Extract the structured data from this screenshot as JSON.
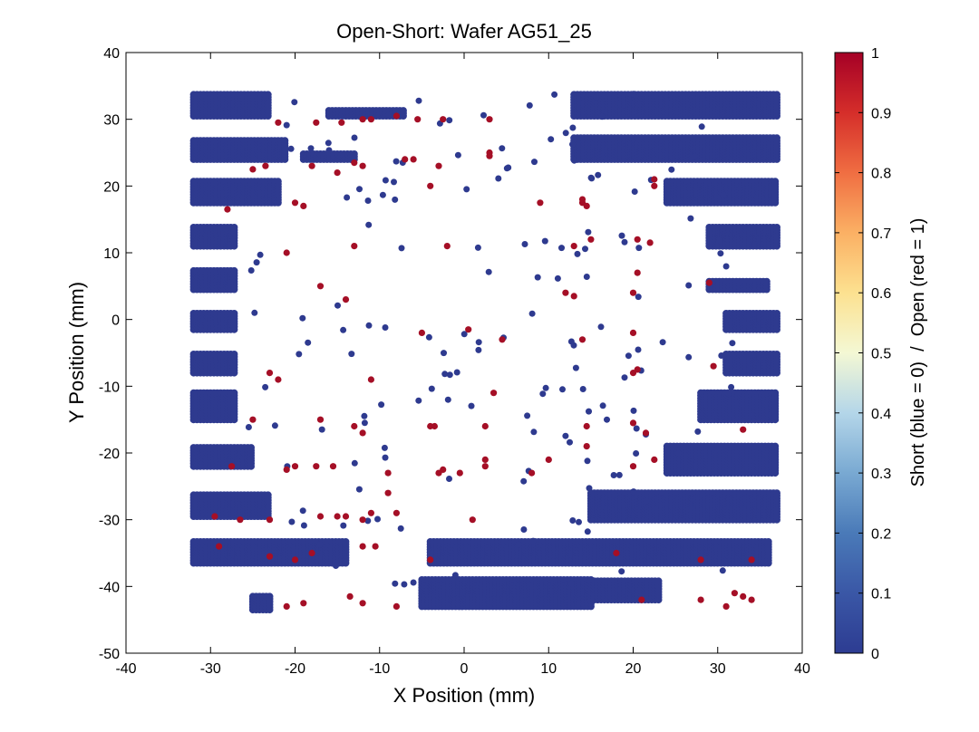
{
  "chart_data": {
    "type": "scatter",
    "title": "Open-Short: Wafer AG51_25",
    "xlabel": "X Position (mm)",
    "ylabel": "Y Position (mm)",
    "xlim": [
      -40,
      40
    ],
    "ylim": [
      -50,
      40
    ],
    "xticks": [
      "-40",
      "-30",
      "-20",
      "-10",
      "0",
      "10",
      "20",
      "30",
      "40"
    ],
    "yticks": [
      "40",
      "30",
      "20",
      "10",
      "0",
      "-10",
      "-20",
      "-30",
      "-40",
      "-50"
    ],
    "colorbar": {
      "label": "Short (blue = 0)  /  Open (red = 1)",
      "ticks": [
        "1",
        "0.9",
        "0.8",
        "0.7",
        "0.6",
        "0.5",
        "0.4",
        "0.3",
        "0.2",
        "0.1",
        "0"
      ],
      "range": [
        0,
        1
      ]
    },
    "colors": {
      "short": "#2e3a8f",
      "open": "#a50f26"
    },
    "dense_bands": [
      {
        "x": [
          -32,
          -23
        ],
        "y": [
          30.5,
          34
        ]
      },
      {
        "x": [
          -16,
          -7
        ],
        "y": [
          30.5,
          31.5
        ]
      },
      {
        "x": [
          13,
          37
        ],
        "y": [
          30.5,
          34
        ]
      },
      {
        "x": [
          -32,
          -21
        ],
        "y": [
          24,
          27
        ]
      },
      {
        "x": [
          -19,
          -13
        ],
        "y": [
          24,
          25
        ]
      },
      {
        "x": [
          13,
          37
        ],
        "y": [
          24,
          27.5
        ]
      },
      {
        "x": [
          -32,
          -22
        ],
        "y": [
          17.5,
          21
        ]
      },
      {
        "x": [
          24,
          37
        ],
        "y": [
          17.5,
          21
        ]
      },
      {
        "x": [
          -32,
          -27
        ],
        "y": [
          11,
          14
        ]
      },
      {
        "x": [
          29,
          37
        ],
        "y": [
          11,
          14
        ]
      },
      {
        "x": [
          -32,
          -27
        ],
        "y": [
          4.5,
          7.5
        ]
      },
      {
        "x": [
          29,
          36
        ],
        "y": [
          4.5,
          6
        ]
      },
      {
        "x": [
          -32,
          -27
        ],
        "y": [
          -1.5,
          1
        ]
      },
      {
        "x": [
          31,
          37
        ],
        "y": [
          -1.5,
          1
        ]
      },
      {
        "x": [
          -32,
          -27
        ],
        "y": [
          -8,
          -5
        ]
      },
      {
        "x": [
          31,
          37
        ],
        "y": [
          -8,
          -5
        ]
      },
      {
        "x": [
          -32,
          -27
        ],
        "y": [
          -15,
          -11
        ]
      },
      {
        "x": [
          28,
          37
        ],
        "y": [
          -15,
          -11
        ]
      },
      {
        "x": [
          -32,
          -25
        ],
        "y": [
          -22,
          -19
        ]
      },
      {
        "x": [
          24,
          37
        ],
        "y": [
          -23,
          -19
        ]
      },
      {
        "x": [
          -32,
          -23
        ],
        "y": [
          -29.5,
          -26
        ]
      },
      {
        "x": [
          15,
          37
        ],
        "y": [
          -30,
          -26
        ]
      },
      {
        "x": [
          -32,
          -14
        ],
        "y": [
          -36.5,
          -33
        ]
      },
      {
        "x": [
          -4,
          36
        ],
        "y": [
          -36.5,
          -33
        ]
      },
      {
        "x": [
          -25,
          -23
        ],
        "y": [
          -43.5,
          -41.5
        ]
      },
      {
        "x": [
          -5,
          15
        ],
        "y": [
          -43,
          -39
        ]
      },
      {
        "x": [
          15,
          23
        ],
        "y": [
          -42,
          -39
        ]
      }
    ],
    "open_points": [
      [
        -22,
        29.5
      ],
      [
        -17.5,
        29.5
      ],
      [
        -14.5,
        29.5
      ],
      [
        -12,
        30
      ],
      [
        -11,
        30
      ],
      [
        -8,
        30.5
      ],
      [
        -5.5,
        30
      ],
      [
        -2.5,
        30
      ],
      [
        3,
        30
      ],
      [
        -25,
        22.5
      ],
      [
        -23.5,
        23
      ],
      [
        -18,
        23
      ],
      [
        -15,
        22
      ],
      [
        -13,
        23.5
      ],
      [
        -12,
        23
      ],
      [
        -7,
        24
      ],
      [
        -6,
        24
      ],
      [
        -3,
        23
      ],
      [
        3,
        25
      ],
      [
        3,
        24.5
      ],
      [
        -28,
        16.5
      ],
      [
        -20,
        17.5
      ],
      [
        -19,
        17
      ],
      [
        -4,
        20
      ],
      [
        9,
        17.5
      ],
      [
        14,
        17.5
      ],
      [
        14,
        18
      ],
      [
        14.5,
        17
      ],
      [
        22.5,
        21
      ],
      [
        22.5,
        20
      ],
      [
        -21,
        10
      ],
      [
        -13,
        11
      ],
      [
        -2,
        11
      ],
      [
        13,
        11
      ],
      [
        15,
        12
      ],
      [
        20.5,
        12
      ],
      [
        22,
        11.5
      ],
      [
        -17,
        5
      ],
      [
        -14,
        3
      ],
      [
        12,
        4
      ],
      [
        13,
        3.5
      ],
      [
        20.5,
        7
      ],
      [
        20,
        4
      ],
      [
        29,
        5.5
      ],
      [
        -5,
        -2
      ],
      [
        0.5,
        -1.5
      ],
      [
        4.5,
        -3
      ],
      [
        14,
        -3
      ],
      [
        20,
        -2
      ],
      [
        -23,
        -8
      ],
      [
        -22,
        -9
      ],
      [
        -11,
        -9
      ],
      [
        3.5,
        -11
      ],
      [
        20,
        -8
      ],
      [
        20.5,
        -7.5
      ],
      [
        29.5,
        -7
      ],
      [
        -25,
        -15
      ],
      [
        -17,
        -15
      ],
      [
        -13,
        -16
      ],
      [
        -12,
        -17
      ],
      [
        -4,
        -16
      ],
      [
        -3.5,
        -16
      ],
      [
        2.5,
        -16
      ],
      [
        14.5,
        -16
      ],
      [
        14.5,
        -19
      ],
      [
        20,
        -15.5
      ],
      [
        21.5,
        -17
      ],
      [
        33,
        -16.5
      ],
      [
        -27.5,
        -22
      ],
      [
        -21,
        -22.5
      ],
      [
        -20,
        -22
      ],
      [
        -17.5,
        -22
      ],
      [
        -15.5,
        -22
      ],
      [
        -9,
        -23
      ],
      [
        -3,
        -23
      ],
      [
        -2.5,
        -22.5
      ],
      [
        -0.5,
        -23
      ],
      [
        2.5,
        -22
      ],
      [
        2.5,
        -21
      ],
      [
        8,
        -23
      ],
      [
        10,
        -21
      ],
      [
        20,
        -22
      ],
      [
        22.5,
        -21
      ],
      [
        -29.5,
        -29.5
      ],
      [
        -26.5,
        -30
      ],
      [
        -23,
        -30
      ],
      [
        -17,
        -29.5
      ],
      [
        -15,
        -29.5
      ],
      [
        -14,
        -29.5
      ],
      [
        -12,
        -30
      ],
      [
        -11,
        -29
      ],
      [
        -9,
        -26
      ],
      [
        -8,
        -29
      ],
      [
        1,
        -30
      ],
      [
        -29,
        -34
      ],
      [
        -23,
        -35.5
      ],
      [
        -20,
        -36
      ],
      [
        -18,
        -35
      ],
      [
        -12,
        -34
      ],
      [
        -10.5,
        -34
      ],
      [
        -4,
        -36
      ],
      [
        18,
        -35
      ],
      [
        28,
        -36
      ],
      [
        34,
        -36
      ],
      [
        -21,
        -43
      ],
      [
        -19,
        -42.5
      ],
      [
        -13.5,
        -41.5
      ],
      [
        -12,
        -42.5
      ],
      [
        -8,
        -43
      ],
      [
        21,
        -42
      ],
      [
        28,
        -42
      ],
      [
        31,
        -43
      ],
      [
        32,
        -41
      ],
      [
        33,
        -41.5
      ],
      [
        34,
        -42
      ]
    ]
  }
}
